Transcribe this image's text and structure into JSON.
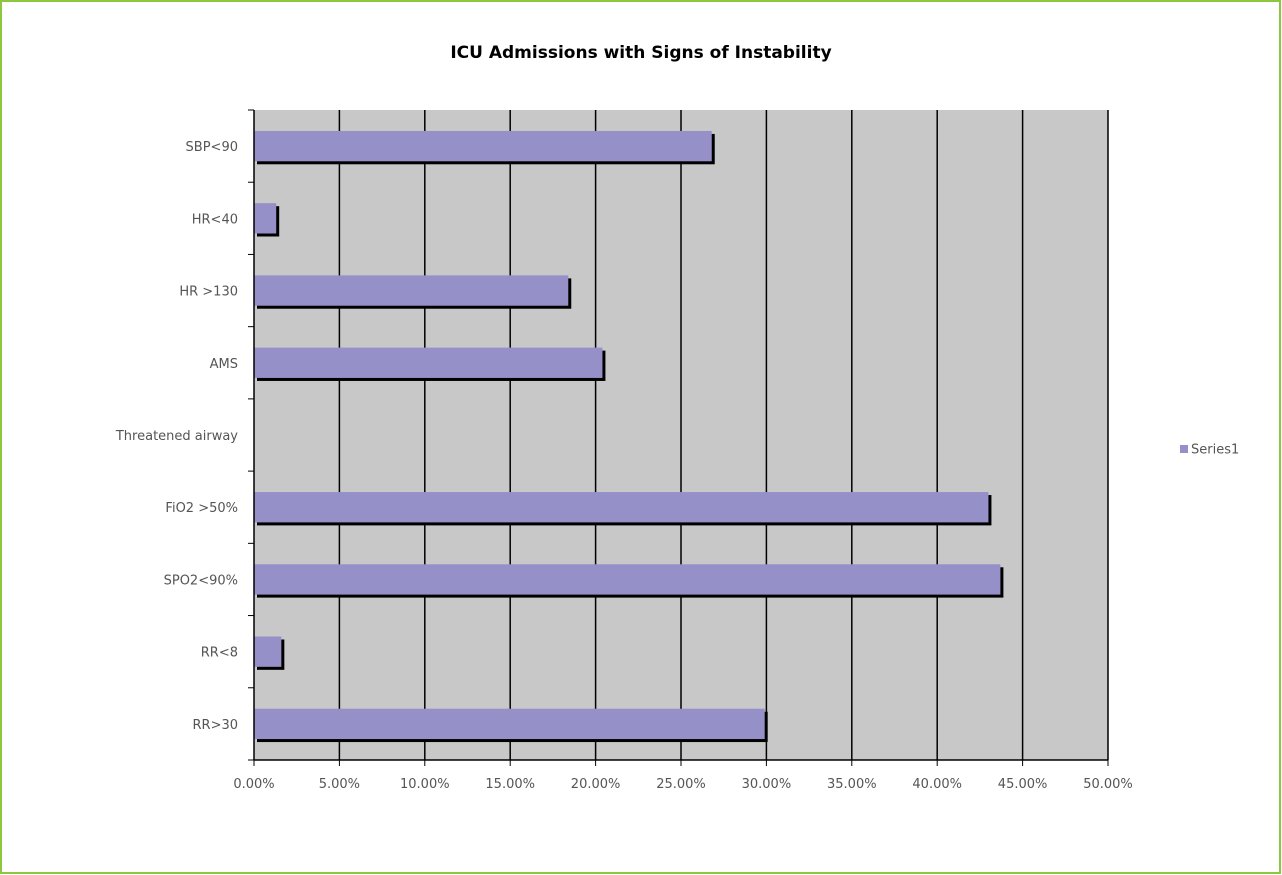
{
  "chart_data": {
    "type": "bar",
    "orientation": "horizontal",
    "title": "ICU Admissions with Signs of Instability",
    "xlabel": "",
    "ylabel": "",
    "categories": [
      "SBP<90",
      "HR<40",
      "HR >130",
      "AMS",
      "Threatened airway",
      "FiO2 >50%",
      "SPO2<90%",
      "RR<8",
      "RR>30"
    ],
    "series": [
      {
        "name": "Series1",
        "values": [
          26.8,
          1.3,
          18.4,
          20.4,
          0.0,
          43.0,
          43.7,
          1.6,
          29.9
        ]
      }
    ],
    "xlim": [
      0,
      50
    ],
    "x_ticks": [
      "0.00%",
      "5.00%",
      "10.00%",
      "15.00%",
      "20.00%",
      "25.00%",
      "30.00%",
      "35.00%",
      "40.00%",
      "45.00%",
      "50.00%"
    ],
    "gridlines": "vertical",
    "legend_position": "right",
    "colors": {
      "bar": "#9590c8",
      "bar_shadow": "#000000",
      "plot_background": "#c8c8c8",
      "gridline": "#000000",
      "frame_border": "#8dc63f"
    }
  }
}
